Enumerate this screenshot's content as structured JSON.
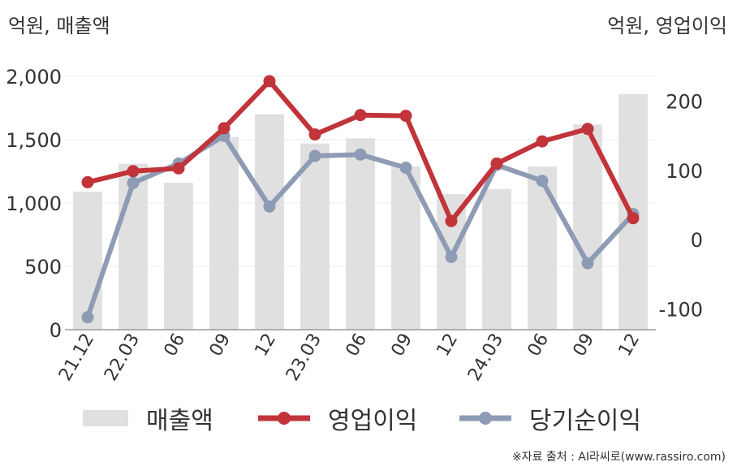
{
  "chart_data": {
    "type": "bar+line",
    "left_axis_label": "억원, 매출액",
    "right_axis_label": "억원, 영업이익",
    "categories": [
      "21.12",
      "22.03",
      "06",
      "09",
      "12",
      "23.03",
      "06",
      "09",
      "12",
      "24.03",
      "06",
      "09",
      "12"
    ],
    "left_ylim": [
      0,
      2000
    ],
    "left_ticks": [
      "0",
      "500",
      "1,000",
      "1,500",
      "2,000"
    ],
    "right_ylim": [
      -130,
      236
    ],
    "right_ticks": [
      "-100",
      "0",
      "100",
      "200"
    ],
    "series": [
      {
        "name": "매출액",
        "kind": "bar",
        "axis": "left",
        "color": "#e0e0e0",
        "values": [
          1090,
          1310,
          1160,
          1520,
          1700,
          1470,
          1510,
          1290,
          1070,
          1110,
          1290,
          1620,
          1860
        ]
      },
      {
        "name": "영업이익",
        "kind": "line",
        "axis": "right",
        "color": "#c0343a",
        "values": [
          83,
          99,
          103,
          161,
          229,
          152,
          180,
          179,
          27,
          110,
          142,
          160,
          31
        ]
      },
      {
        "name": "당기순이익",
        "kind": "line",
        "axis": "right",
        "color": "#8e9bb5",
        "values": [
          -112,
          82,
          110,
          150,
          48,
          121,
          123,
          104,
          -25,
          108,
          85,
          -34,
          37
        ]
      }
    ]
  },
  "legend": {
    "bar_label": "매출액",
    "line1_label": "영업이익",
    "line2_label": "당기순이익"
  },
  "source": "※자료 출처 : AI라씨로(www.rassiro.com)"
}
